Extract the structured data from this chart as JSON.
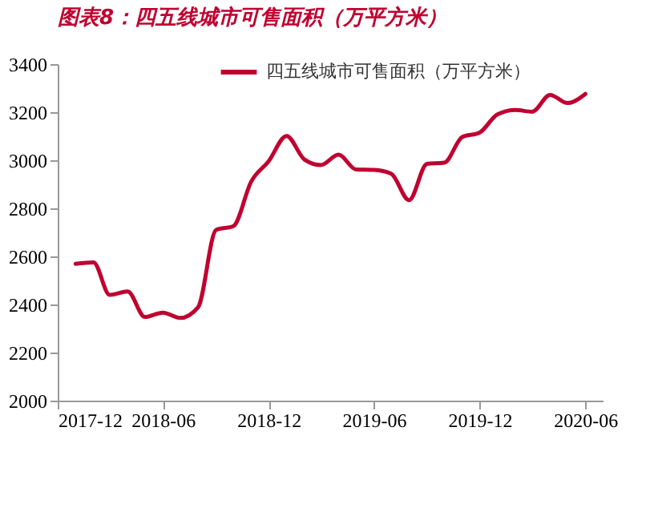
{
  "chart_data": {
    "type": "line",
    "title": "图表8：四五线城市可售面积（万平方米）",
    "x": [
      "2018-01",
      "2018-02",
      "2018-03",
      "2018-04",
      "2018-05",
      "2018-06",
      "2018-07",
      "2018-08",
      "2018-09",
      "2018-10",
      "2018-11",
      "2018-12",
      "2019-01",
      "2019-02",
      "2019-03",
      "2019-04",
      "2019-05",
      "2019-06",
      "2019-07",
      "2019-08",
      "2019-09",
      "2019-10",
      "2019-11",
      "2019-12",
      "2020-01",
      "2020-02",
      "2020-03",
      "2020-04",
      "2020-05",
      "2020-06"
    ],
    "series": [
      {
        "name": "四五线城市可售面积（万平方米）",
        "color": "#c00030",
        "values": [
          2569,
          2575,
          2440,
          2454,
          2348,
          2366,
          2344,
          2389,
          2710,
          2726,
          2912,
          2996,
          3101,
          3003,
          2980,
          3023,
          2962,
          2960,
          2944,
          2834,
          2985,
          2990,
          3097,
          3115,
          3191,
          3209,
          3202,
          3272,
          3238,
          3276
        ]
      }
    ],
    "xlim": [
      "2017-12",
      "2020-07"
    ],
    "xticks": [
      "2017-12",
      "2018-06",
      "2018-12",
      "2019-06",
      "2019-12",
      "2020-06"
    ],
    "ylim": [
      2000,
      3400
    ],
    "yticks": [
      2000,
      2200,
      2400,
      2600,
      2800,
      3000,
      3200,
      3400
    ],
    "grid": false,
    "legend": "top right",
    "marker": "none",
    "line_style": "solid"
  }
}
